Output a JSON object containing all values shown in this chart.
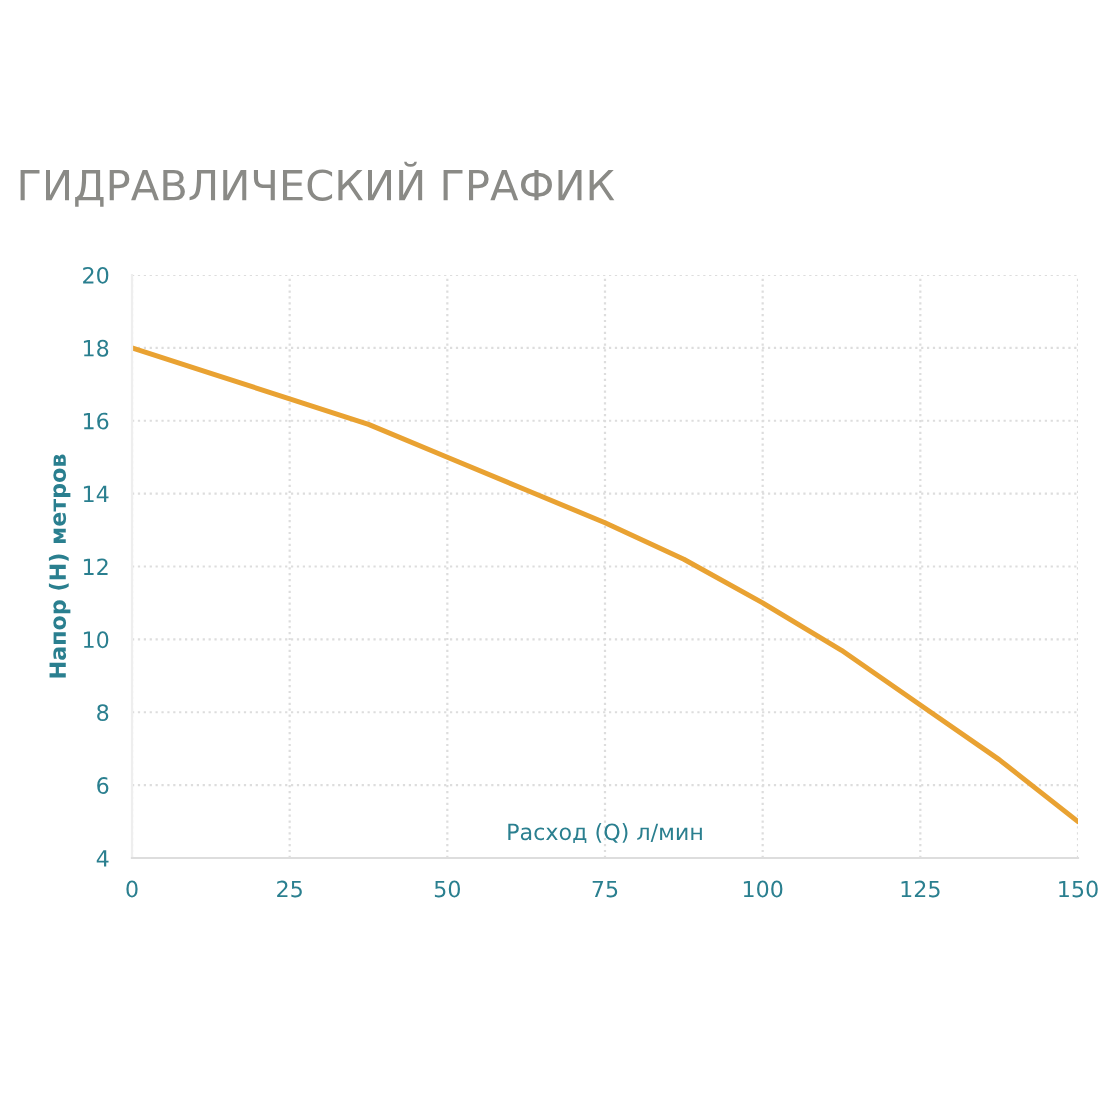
{
  "chart_data": {
    "type": "line",
    "title": "ГИДРАВЛИЧЕСКИЙ ГРАФИК",
    "xlabel": "Расход (Q) л/мин",
    "ylabel": "Напор (H) метров",
    "x": [
      0,
      12.5,
      25,
      37.5,
      50,
      62.5,
      75,
      87.5,
      100,
      112.5,
      125,
      137.5,
      150
    ],
    "series": [
      {
        "color": "#e9a232",
        "values": [
          18,
          17.3,
          16.6,
          15.9,
          15.0,
          14.1,
          13.2,
          12.2,
          11.0,
          9.7,
          8.2,
          6.7,
          5.0
        ]
      }
    ],
    "xlim": [
      0,
      150
    ],
    "xticks": [
      0,
      25,
      50,
      75,
      100,
      125,
      150
    ],
    "ylim": [
      4,
      20
    ],
    "yticks": [
      4,
      6,
      8,
      10,
      12,
      14,
      16,
      18,
      20
    ],
    "grid": true,
    "marker": "none",
    "line_style": "solid"
  }
}
